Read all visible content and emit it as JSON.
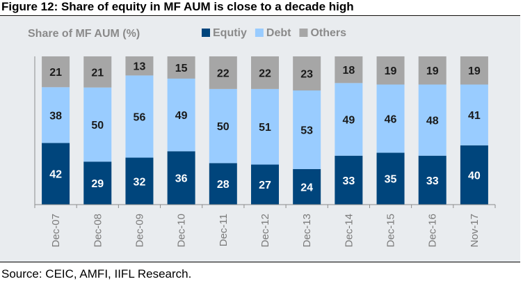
{
  "title": "Figure 12: Share of equity in MF AUM is close to a decade high",
  "source": "Source: CEIC, AMFI, IIFL Research.",
  "chart_data": {
    "type": "bar",
    "stacked": true,
    "ylabel": "Share of MF AUM (%)",
    "categories": [
      "Dec-07",
      "Dec-08",
      "Dec-09",
      "Dec-10",
      "Dec-11",
      "Dec-12",
      "Dec-13",
      "Dec-14",
      "Dec-15",
      "Dec-16",
      "Nov-17"
    ],
    "series": [
      {
        "name": "Equtiy",
        "color": "#00457c",
        "values": [
          42,
          29,
          32,
          36,
          28,
          27,
          24,
          33,
          35,
          33,
          40
        ]
      },
      {
        "name": "Debt",
        "color": "#99ccff",
        "values": [
          38,
          50,
          56,
          49,
          50,
          51,
          53,
          49,
          46,
          48,
          41
        ]
      },
      {
        "name": "Others",
        "color": "#a6a6a6",
        "values": [
          21,
          21,
          13,
          15,
          22,
          22,
          23,
          18,
          19,
          19,
          19
        ]
      }
    ],
    "legend_position": "top",
    "grid": false
  }
}
